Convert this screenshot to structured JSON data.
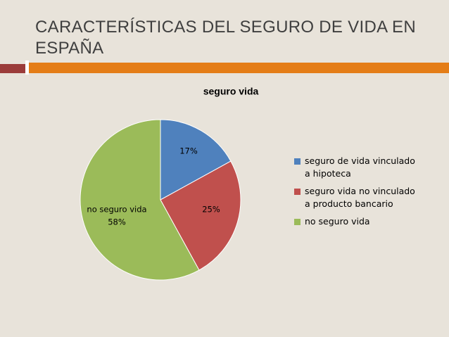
{
  "slide_title": "CARACTERÍSTICAS DEL SEGURO DE VIDA EN ESPAÑA",
  "chart_data": {
    "type": "pie",
    "title": "seguro vida",
    "categories": [
      "seguro de vida vinculado a hipoteca",
      "seguro vida no vinculado a producto bancario",
      "no seguro vida"
    ],
    "values": [
      17,
      25,
      58
    ],
    "value_labels": [
      "17%",
      "25%",
      "58%"
    ],
    "colors": [
      "#4f81bd",
      "#c0504d",
      "#9bbb59"
    ],
    "legend": "right"
  }
}
